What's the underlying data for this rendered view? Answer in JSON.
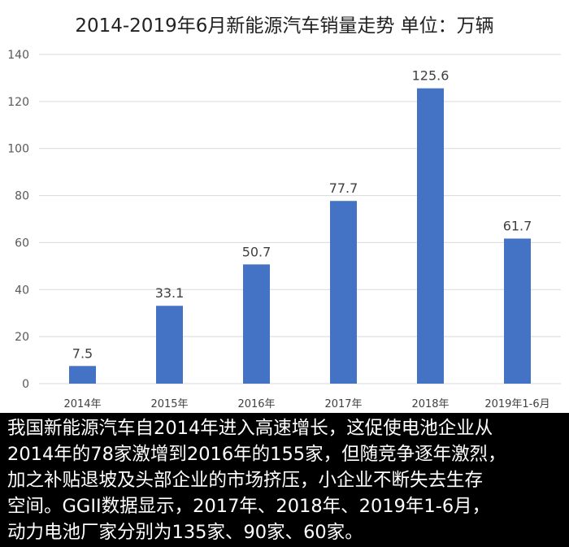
{
  "chart_data": {
    "type": "bar",
    "title": "2014-2019年6月新能源汽车销量走势 单位：万辆",
    "categories": [
      "2014年",
      "2015年",
      "2016年",
      "2017年",
      "2018年",
      "2019年1-6月"
    ],
    "values": [
      7.5,
      33.1,
      50.7,
      77.7,
      125.6,
      61.7
    ],
    "data_labels": [
      "7.5",
      "33.1",
      "50.7",
      "77.7",
      "125.6",
      "61.7"
    ],
    "ylim": [
      0,
      140
    ],
    "yticks": [
      "0",
      "20",
      "40",
      "60",
      "80",
      "100",
      "120",
      "140"
    ],
    "grid": true,
    "bar_color": "#4472C4"
  },
  "caption": {
    "lines": [
      "我国新能源汽车自2014年进入高速增长，这促使电池企业从",
      "2014年的78家激增到2016年的155家，但随竞争逐年激烈，",
      "加之补贴退坡及头部企业的市场挤压，小企业不断失去生存",
      "空间。GGII数据显示，2017年、2018年、2019年1-6月，",
      "动力电池厂家分别为135家、90家、60家。"
    ]
  }
}
